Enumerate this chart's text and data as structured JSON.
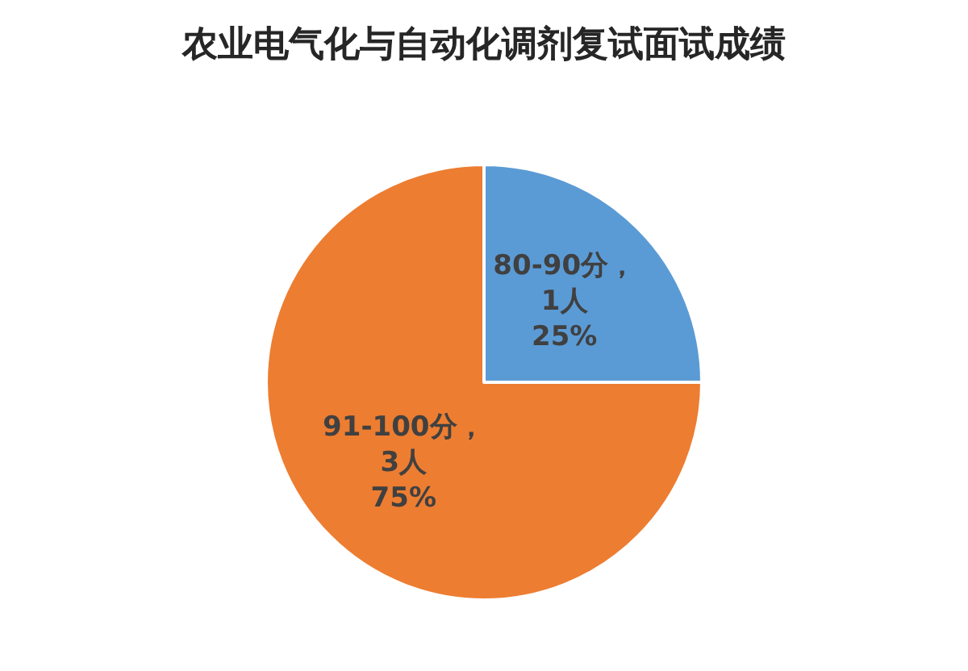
{
  "chart_data": {
    "type": "pie",
    "title": "农业电气化与自动化调剂复试面试成绩",
    "categories": [
      "80-90分",
      "91-100分"
    ],
    "values": [
      1,
      3
    ],
    "colors": [
      "#5b9bd5",
      "#ed7d31"
    ],
    "value_labels": [
      "，\n1人\n25%",
      "，\n3人\n75%"
    ],
    "legend": false
  }
}
